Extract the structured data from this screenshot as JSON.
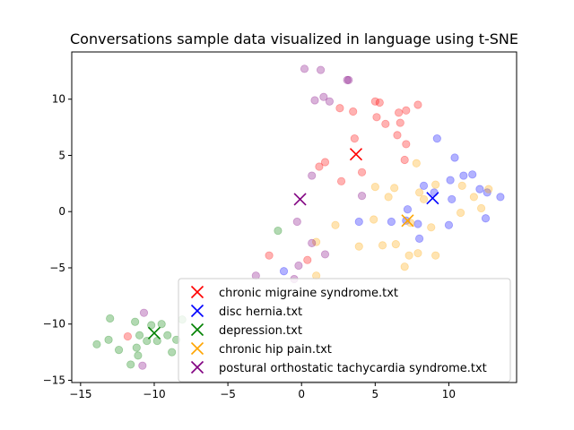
{
  "chart_data": {
    "type": "scatter",
    "title": "Conversations sample data visualized in language using t-SNE",
    "xlabel": "",
    "ylabel": "",
    "xlim": [
      -15.6,
      14.6
    ],
    "ylim": [
      -15.2,
      14.2
    ],
    "x_ticks": [
      -15,
      -10,
      -5,
      0,
      5,
      10
    ],
    "y_ticks": [
      -15,
      -10,
      -5,
      0,
      5,
      10
    ],
    "grid": false,
    "legend_position": "lower-right",
    "series": [
      {
        "name": "chronic migraine syndrome.txt",
        "color": "#ff0000",
        "centroid": [
          3.7,
          5.1
        ],
        "points": [
          [
            5.0,
            9.8
          ],
          [
            5.3,
            9.7
          ],
          [
            7.9,
            9.5
          ],
          [
            7.1,
            9.0
          ],
          [
            6.6,
            8.8
          ],
          [
            2.6,
            9.2
          ],
          [
            3.5,
            8.9
          ],
          [
            5.1,
            8.4
          ],
          [
            5.7,
            7.8
          ],
          [
            6.7,
            7.9
          ],
          [
            6.5,
            6.8
          ],
          [
            7.1,
            6.0
          ],
          [
            3.6,
            6.5
          ],
          [
            7.0,
            4.6
          ],
          [
            1.2,
            4.0
          ],
          [
            1.6,
            4.4
          ],
          [
            4.1,
            3.5
          ],
          [
            2.7,
            2.7
          ],
          [
            -2.2,
            -3.9
          ],
          [
            0.4,
            -4.3
          ],
          [
            -11.8,
            -11.1
          ]
        ]
      },
      {
        "name": "disc hernia.txt",
        "color": "#0000ff",
        "centroid": [
          8.9,
          1.2
        ],
        "points": [
          [
            9.2,
            6.5
          ],
          [
            10.4,
            4.8
          ],
          [
            11.0,
            3.2
          ],
          [
            11.6,
            3.3
          ],
          [
            12.1,
            2.0
          ],
          [
            8.3,
            2.3
          ],
          [
            10.1,
            2.8
          ],
          [
            9.0,
            1.7
          ],
          [
            10.2,
            1.1
          ],
          [
            12.6,
            1.7
          ],
          [
            13.5,
            1.3
          ],
          [
            7.2,
            0.2
          ],
          [
            7.1,
            -0.8
          ],
          [
            3.9,
            -0.9
          ],
          [
            6.1,
            -0.9
          ],
          [
            7.9,
            -1.1
          ],
          [
            10.0,
            -1.2
          ],
          [
            12.5,
            -0.6
          ],
          [
            8.0,
            -2.4
          ],
          [
            -1.2,
            -5.3
          ]
        ]
      },
      {
        "name": "depression.txt",
        "color": "#008000",
        "centroid": [
          -10.0,
          -10.8
        ],
        "points": [
          [
            -1.6,
            -1.7
          ],
          [
            -13.0,
            -9.5
          ],
          [
            -11.3,
            -9.8
          ],
          [
            -9.5,
            -10.0
          ],
          [
            -8.1,
            -9.6
          ],
          [
            -10.2,
            -10.1
          ],
          [
            -11.0,
            -11.0
          ],
          [
            -10.5,
            -11.5
          ],
          [
            -9.8,
            -11.5
          ],
          [
            -9.1,
            -11.0
          ],
          [
            -8.5,
            -11.4
          ],
          [
            -13.1,
            -11.4
          ],
          [
            -13.9,
            -11.8
          ],
          [
            -11.2,
            -12.1
          ],
          [
            -12.4,
            -12.3
          ],
          [
            -8.8,
            -12.5
          ],
          [
            -11.1,
            -12.8
          ],
          [
            -11.6,
            -13.6
          ]
        ]
      },
      {
        "name": "chronic hip pain.txt",
        "color": "#ffa500",
        "centroid": [
          7.2,
          -0.8
        ],
        "points": [
          [
            7.8,
            4.3
          ],
          [
            8.0,
            1.7
          ],
          [
            9.1,
            2.4
          ],
          [
            10.9,
            2.3
          ],
          [
            12.7,
            2.0
          ],
          [
            5.0,
            2.2
          ],
          [
            6.3,
            2.1
          ],
          [
            5.9,
            1.3
          ],
          [
            8.3,
            1.1
          ],
          [
            11.7,
            1.3
          ],
          [
            12.2,
            0.3
          ],
          [
            10.8,
            -0.1
          ],
          [
            7.4,
            -1.0
          ],
          [
            2.3,
            -1.2
          ],
          [
            4.9,
            -0.7
          ],
          [
            8.8,
            -1.4
          ],
          [
            3.9,
            -3.1
          ],
          [
            5.5,
            -3.0
          ],
          [
            6.4,
            -2.9
          ],
          [
            1.0,
            -2.7
          ],
          [
            7.3,
            -3.9
          ],
          [
            7.9,
            -3.7
          ],
          [
            9.1,
            -3.9
          ],
          [
            7.0,
            -4.9
          ],
          [
            1.0,
            -5.7
          ]
        ]
      },
      {
        "name": "postural orthostatic tachycardia syndrome.txt",
        "color": "#800080",
        "centroid": [
          -0.1,
          1.1
        ],
        "points": [
          [
            0.2,
            12.7
          ],
          [
            1.3,
            12.6
          ],
          [
            3.1,
            11.7
          ],
          [
            3.2,
            11.7
          ],
          [
            1.5,
            10.2
          ],
          [
            0.9,
            9.9
          ],
          [
            1.9,
            9.8
          ],
          [
            0.7,
            3.2
          ],
          [
            4.1,
            1.4
          ],
          [
            -0.3,
            -0.9
          ],
          [
            0.7,
            -2.8
          ],
          [
            1.6,
            -3.8
          ],
          [
            -0.2,
            -4.8
          ],
          [
            -3.1,
            -5.7
          ],
          [
            -0.5,
            -6.0
          ],
          [
            -10.7,
            -9.0
          ],
          [
            -10.8,
            -13.7
          ]
        ]
      }
    ]
  }
}
